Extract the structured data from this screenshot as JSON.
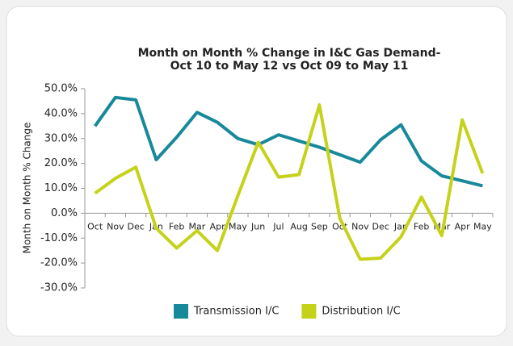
{
  "chart_data": {
    "type": "line",
    "title": [
      "Month on Month % Change in I&C Gas Demand-",
      "Oct 10 to May 12 vs Oct 09 to May 11"
    ],
    "y_label": "Month on Month % Change",
    "categories": [
      "Oct",
      "Nov",
      "Dec",
      "Jan",
      "Feb",
      "Mar",
      "Apr",
      "May",
      "Jun",
      "Jul",
      "Aug",
      "Sep",
      "Oct",
      "Nov",
      "Dec",
      "Jan",
      "Feb",
      "Mar",
      "Apr",
      "May"
    ],
    "series": [
      {
        "name": "Transmission I/C",
        "color": "#17899a",
        "values": [
          35,
          46.5,
          45.5,
          21.5,
          30.5,
          40.5,
          36.5,
          30,
          27.5,
          31.5,
          29,
          26.5,
          23.5,
          20.5,
          29.5,
          35.5,
          21,
          15,
          13,
          11
        ]
      },
      {
        "name": "Distribution I/C",
        "color": "#c5d21a",
        "values": [
          8,
          14,
          18.5,
          -6,
          -14,
          -7,
          -15,
          7,
          28.5,
          14.5,
          15.5,
          43.5,
          -2,
          -18.5,
          -18,
          -9.5,
          6.5,
          -9,
          37.5,
          16
        ]
      }
    ],
    "ylim": [
      -30,
      50
    ],
    "yticks": [
      {
        "value": -30,
        "label": "-30.0%"
      },
      {
        "value": -20,
        "label": "-20.0%"
      },
      {
        "value": -10,
        "label": "-10.0%"
      },
      {
        "value": 0,
        "label": "0.0%"
      },
      {
        "value": 10,
        "label": "10.0%"
      },
      {
        "value": 20,
        "label": "20.0%"
      },
      {
        "value": 30,
        "label": "30.0%"
      },
      {
        "value": 40,
        "label": "40.0%"
      },
      {
        "value": 50,
        "label": "50.0%"
      }
    ],
    "legend": "bottom"
  }
}
